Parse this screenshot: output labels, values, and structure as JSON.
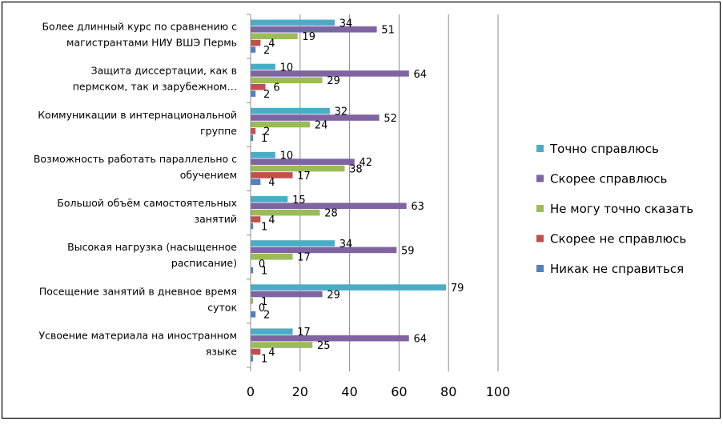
{
  "chart_data": {
    "type": "bar",
    "orientation": "horizontal",
    "categories": [
      [
        "Более длинный курс по сравнению с",
        "магистрантами НИУ ВШЭ Пермь"
      ],
      [
        "Защита диссертации, как в",
        "пермском, так и зарубежном…"
      ],
      [
        "Коммуникации в интернациональной",
        "группе"
      ],
      [
        "Возможность работать параллельно с",
        "обучением"
      ],
      [
        "Большой объём самостоятельных",
        "занятий"
      ],
      [
        "Высокая нагрузка (насыщенное",
        "расписание)"
      ],
      [
        "Посещение занятий в дневное время",
        "суток"
      ],
      [
        "Усвоение материала на иностранном",
        "языке"
      ]
    ],
    "series": [
      {
        "name": "Точно справлюсь",
        "color": "#4bacc6",
        "values": [
          34,
          10,
          32,
          10,
          15,
          34,
          79,
          17
        ]
      },
      {
        "name": "Скорее справлюсь",
        "color": "#8064a2",
        "values": [
          51,
          64,
          52,
          42,
          63,
          59,
          29,
          64
        ]
      },
      {
        "name": "Не могу точно сказать",
        "color": "#9bbb59",
        "values": [
          19,
          29,
          24,
          38,
          28,
          17,
          1,
          25
        ]
      },
      {
        "name": "Скорее не справлюсь",
        "color": "#c0504d",
        "values": [
          4,
          6,
          2,
          17,
          4,
          0,
          0,
          4
        ]
      },
      {
        "name": "Никак не справиться",
        "color": "#4f81bd",
        "values": [
          2,
          2,
          1,
          4,
          1,
          1,
          2,
          1
        ]
      }
    ],
    "xlim": [
      0,
      100
    ],
    "xticks": [
      0,
      20,
      40,
      60,
      80,
      100
    ],
    "grid": true,
    "legend_position": "right"
  }
}
